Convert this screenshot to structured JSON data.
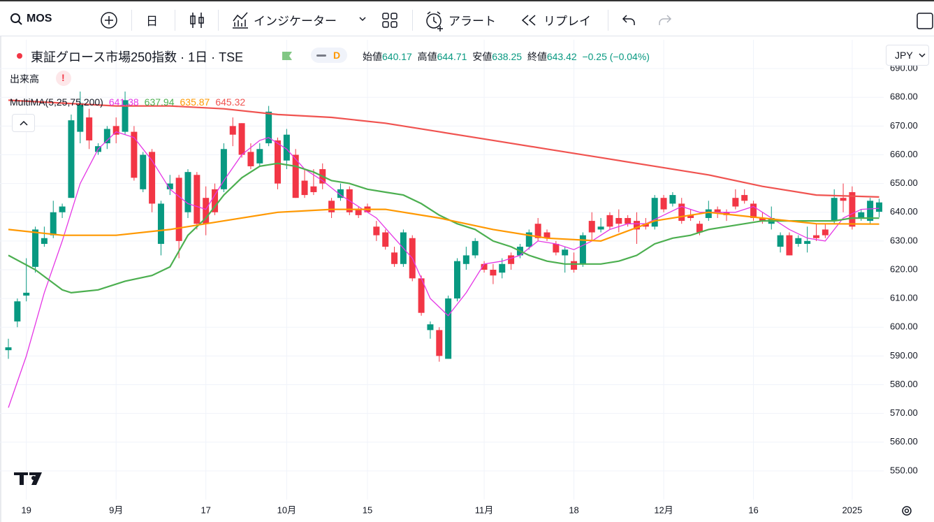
{
  "toolbar": {
    "symbol": "MOS",
    "interval": "日",
    "indicators": "インジケーター",
    "alerts": "アラート",
    "replay": "リプレイ"
  },
  "legend": {
    "title": "東証グロース市場250指数 · 1日 · TSE",
    "badge": "D",
    "open_label": "始値",
    "high_label": "高値",
    "low_label": "安値",
    "close_label": "終値",
    "change": "−0.25 (−0.04%)",
    "volume": "出来高",
    "volume_alert": "!",
    "ma_name": "MultiMA(5,25,75,200)",
    "currency": "JPY"
  },
  "chart_data": {
    "type": "candlestick",
    "categories": [
      null,
      null,
      "19",
      null,
      null,
      null,
      null,
      null,
      null,
      null,
      null,
      null,
      "9月",
      null,
      null,
      null,
      null,
      null,
      null,
      null,
      null,
      null,
      "17",
      null,
      null,
      null,
      null,
      null,
      null,
      null,
      null,
      "10月",
      null,
      null,
      null,
      null,
      null,
      null,
      null,
      null,
      "15",
      null,
      null,
      null,
      null,
      null,
      null,
      null,
      null,
      null,
      null,
      null,
      null,
      "11月",
      null,
      null,
      null,
      null,
      null,
      null,
      null,
      null,
      null,
      "18",
      null,
      null,
      null,
      null,
      null,
      null,
      null,
      null,
      null,
      "12月",
      null,
      null,
      null,
      null,
      null,
      null,
      null,
      null,
      null,
      "16",
      null,
      null,
      null,
      null,
      null,
      null,
      null,
      null,
      null,
      null,
      "2025",
      null,
      null,
      null
    ],
    "open": [
      592,
      602,
      611,
      621,
      629,
      632,
      640,
      645,
      668,
      673,
      661,
      664,
      670,
      668,
      668,
      648,
      661,
      629,
      648,
      652,
      640,
      653,
      645,
      648,
      648,
      670,
      671,
      661,
      657,
      664,
      665,
      658,
      660,
      651,
      649,
      655,
      644,
      645,
      648,
      641,
      642,
      635,
      633,
      626,
      622,
      631,
      617,
      599,
      599,
      589,
      610,
      622,
      625,
      622,
      620,
      619,
      625,
      625,
      628,
      636,
      633,
      629,
      625,
      623,
      622,
      637,
      634,
      639,
      638,
      638,
      637,
      636,
      635,
      645,
      643,
      643,
      639,
      636,
      638,
      641,
      640,
      645,
      646,
      643,
      638,
      636,
      628,
      632,
      629,
      629,
      632,
      634,
      637,
      645,
      647,
      638,
      637,
      640.17
    ],
    "high": [
      596,
      610,
      624,
      635,
      635,
      644,
      643,
      674,
      682,
      676,
      664,
      670,
      673,
      682,
      670,
      661,
      662,
      644,
      653,
      653,
      655,
      654,
      649,
      650,
      664,
      673,
      671,
      664,
      664,
      677,
      666,
      669,
      662,
      655,
      655,
      657,
      645,
      650,
      649,
      642,
      643,
      637,
      634,
      628,
      634,
      632,
      618,
      602,
      600,
      611,
      624,
      628,
      631,
      623,
      622,
      624,
      626,
      629,
      634,
      638,
      634,
      630,
      628,
      626,
      633,
      640,
      638,
      640,
      641,
      639,
      640,
      638,
      646,
      646,
      647,
      645,
      641,
      637,
      644,
      642,
      641,
      648,
      648,
      644,
      640,
      642,
      633,
      633,
      632,
      635,
      636,
      636,
      648,
      650,
      649,
      641,
      645,
      644.71
    ],
    "low": [
      589,
      600,
      609,
      619,
      628,
      631,
      638,
      645,
      664,
      662,
      660,
      662,
      664,
      667,
      651,
      647,
      640,
      625,
      646,
      624,
      638,
      634,
      632,
      639,
      647,
      663,
      659,
      655,
      656,
      663,
      648,
      655,
      645,
      645,
      646,
      648,
      638,
      644,
      639,
      638,
      641,
      630,
      627,
      621,
      621,
      616,
      604,
      596,
      588,
      589,
      609,
      620,
      624,
      619,
      615,
      617,
      620,
      624,
      627,
      630,
      630,
      625,
      619,
      619,
      621,
      630,
      633,
      634,
      633,
      635,
      629,
      634,
      634,
      640,
      642,
      636,
      637,
      632,
      637,
      638,
      637,
      641,
      643,
      637,
      636,
      634,
      626,
      625,
      628,
      626,
      630,
      631,
      636,
      640,
      634,
      637,
      636,
      638.25
    ],
    "close": [
      593,
      609,
      612,
      634,
      631,
      640,
      642,
      672,
      678,
      665,
      663,
      669,
      667,
      679,
      652,
      660,
      643,
      643,
      650,
      630,
      654,
      636,
      636,
      640,
      662,
      667,
      660,
      656,
      662,
      675,
      650,
      667,
      645,
      646,
      647,
      650,
      640,
      648,
      640,
      639,
      640,
      632,
      628,
      622,
      633,
      617,
      605,
      601,
      590,
      610,
      623,
      625,
      630,
      620,
      618,
      622,
      622,
      628,
      633,
      631,
      631,
      626,
      627,
      620,
      632,
      633,
      635,
      635,
      636,
      636,
      634,
      635,
      645,
      641,
      646,
      637,
      638,
      633,
      641,
      640,
      639,
      642,
      644,
      638,
      637,
      638,
      632,
      625,
      631,
      630,
      631,
      632,
      645,
      644,
      635,
      640,
      644,
      643.42
    ],
    "up_color": "#089981",
    "down_color": "#f23645",
    "ma": [
      {
        "color": "#e536e5",
        "x": [
          0,
          2,
          4,
          6,
          8,
          10,
          12,
          14,
          16,
          18,
          20,
          22,
          24,
          26,
          28,
          29,
          31,
          33,
          35,
          37,
          39,
          41,
          43,
          45,
          47,
          49,
          51,
          53,
          55,
          57,
          59,
          61,
          63,
          65,
          67,
          69,
          71,
          73,
          75,
          77,
          79,
          81,
          83,
          85,
          87,
          89,
          91,
          93,
          95,
          97
        ],
        "values": [
          572,
          590,
          612,
          630,
          650,
          662,
          668,
          666,
          658,
          648,
          643,
          641,
          651,
          660,
          665,
          666,
          662,
          655,
          651,
          646,
          642,
          638,
          631,
          624,
          610,
          604,
          612,
          622,
          623,
          625,
          630,
          629,
          627,
          630,
          634,
          636,
          636,
          639,
          642,
          640,
          640,
          640,
          642,
          638,
          634,
          631,
          630,
          638,
          641,
          641.38
        ]
      },
      {
        "color": "#4caf50",
        "x": [
          0,
          3,
          6,
          7,
          10,
          13,
          16,
          18,
          20,
          22,
          24,
          26,
          28,
          30,
          32,
          34,
          36,
          38,
          40,
          42,
          44,
          46,
          48,
          50,
          52,
          54,
          56,
          58,
          60,
          62,
          64,
          66,
          68,
          70,
          72,
          74,
          76,
          78,
          80,
          82,
          84,
          86,
          88,
          90,
          92,
          94,
          97
        ],
        "values": [
          625,
          620,
          613,
          612,
          613,
          616,
          618,
          621,
          632,
          638,
          646,
          652,
          656,
          657,
          656,
          654,
          651,
          650,
          648,
          647,
          646,
          643,
          639,
          636,
          634,
          630,
          628,
          625,
          623,
          622,
          622,
          622,
          623,
          625,
          629,
          631,
          632,
          634,
          635,
          636,
          637,
          637,
          637,
          637,
          637,
          638,
          637.94
        ]
      },
      {
        "color": "#ff9800",
        "x": [
          0,
          6,
          12,
          18,
          24,
          30,
          36,
          42,
          48,
          54,
          60,
          66,
          72,
          78,
          84,
          90,
          97
        ],
        "values": [
          634,
          632,
          632,
          634,
          637,
          640,
          641,
          641,
          638,
          634,
          631,
          630,
          637,
          640,
          638,
          636,
          635.87
        ]
      },
      {
        "color": "#f05350",
        "x": [
          0,
          6,
          12,
          18,
          24,
          30,
          36,
          42,
          48,
          54,
          60,
          66,
          72,
          78,
          84,
          90,
          97
        ],
        "values": [
          679,
          678,
          677,
          677,
          676,
          674,
          673,
          671,
          668,
          665,
          662,
          659,
          656,
          653,
          649,
          646,
          645.32
        ]
      }
    ],
    "ylim": [
      540,
      700
    ],
    "yticks": [
      {
        "value": 550,
        "label": "550.00"
      },
      {
        "value": 560,
        "label": "560.00"
      },
      {
        "value": 570,
        "label": "570.00"
      },
      {
        "value": 580,
        "label": "580.00"
      },
      {
        "value": 590,
        "label": "590.00"
      },
      {
        "value": 600,
        "label": "600.00"
      },
      {
        "value": 610,
        "label": "610.00"
      },
      {
        "value": 620,
        "label": "620.00"
      },
      {
        "value": 630,
        "label": "630.00"
      },
      {
        "value": 640,
        "label": "640.00"
      },
      {
        "value": 650,
        "label": "650.00"
      },
      {
        "value": 660,
        "label": "660.00"
      },
      {
        "value": 670,
        "label": "670.00"
      },
      {
        "value": 680,
        "label": "680.00"
      },
      {
        "value": 690,
        "label": "690.00"
      }
    ],
    "grid": true
  }
}
